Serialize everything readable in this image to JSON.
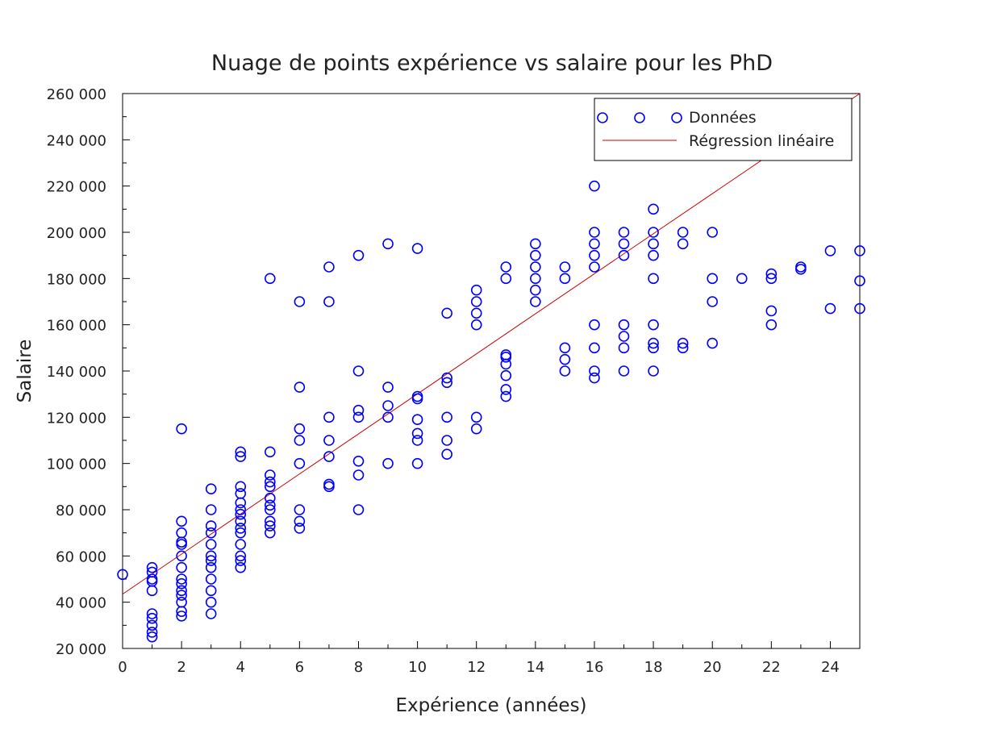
{
  "chart_data": {
    "type": "scatter",
    "title": "Nuage de points expérience vs salaire pour les PhD",
    "xlabel": "Expérience (années)",
    "ylabel": "Salaire",
    "xlim": [
      0,
      25
    ],
    "ylim": [
      20000,
      260000
    ],
    "xticks": [
      0,
      2,
      4,
      6,
      8,
      10,
      12,
      14,
      16,
      18,
      20,
      22,
      24
    ],
    "xtick_labels": [
      "0",
      "2",
      "4",
      "6",
      "8",
      "10",
      "12",
      "14",
      "16",
      "18",
      "20",
      "22",
      "24"
    ],
    "yticks": [
      20000,
      40000,
      60000,
      80000,
      100000,
      120000,
      140000,
      160000,
      180000,
      200000,
      220000,
      240000,
      260000
    ],
    "ytick_labels": [
      "20 000",
      "40 000",
      "60 000",
      "80 000",
      "100 000",
      "120 000",
      "140 000",
      "160 000",
      "180 000",
      "200 000",
      "220 000",
      "240 000",
      "260 000"
    ],
    "grid": false,
    "legend_position": "top-right",
    "colors": {
      "points": "#0000ff",
      "regression": "#cc0000"
    },
    "series": [
      {
        "name": "Données",
        "marker": "circle",
        "points": [
          [
            0,
            52000
          ],
          [
            1,
            25000
          ],
          [
            1,
            27000
          ],
          [
            1,
            30000
          ],
          [
            1,
            33000
          ],
          [
            1,
            35000
          ],
          [
            1,
            45000
          ],
          [
            1,
            49000
          ],
          [
            1,
            50000
          ],
          [
            1,
            53000
          ],
          [
            1,
            55000
          ],
          [
            2,
            34000
          ],
          [
            2,
            36000
          ],
          [
            2,
            40000
          ],
          [
            2,
            43000
          ],
          [
            2,
            45000
          ],
          [
            2,
            48000
          ],
          [
            2,
            50000
          ],
          [
            2,
            55000
          ],
          [
            2,
            60000
          ],
          [
            2,
            65000
          ],
          [
            2,
            66000
          ],
          [
            2,
            70000
          ],
          [
            2,
            75000
          ],
          [
            2,
            115000
          ],
          [
            3,
            35000
          ],
          [
            3,
            40000
          ],
          [
            3,
            45000
          ],
          [
            3,
            50000
          ],
          [
            3,
            55000
          ],
          [
            3,
            58000
          ],
          [
            3,
            60000
          ],
          [
            3,
            65000
          ],
          [
            3,
            70000
          ],
          [
            3,
            73000
          ],
          [
            3,
            80000
          ],
          [
            3,
            89000
          ],
          [
            4,
            55000
          ],
          [
            4,
            58000
          ],
          [
            4,
            60000
          ],
          [
            4,
            65000
          ],
          [
            4,
            70000
          ],
          [
            4,
            72000
          ],
          [
            4,
            75000
          ],
          [
            4,
            78000
          ],
          [
            4,
            80000
          ],
          [
            4,
            83000
          ],
          [
            4,
            87000
          ],
          [
            4,
            90000
          ],
          [
            4,
            103000
          ],
          [
            4,
            105000
          ],
          [
            5,
            70000
          ],
          [
            5,
            73000
          ],
          [
            5,
            75000
          ],
          [
            5,
            80000
          ],
          [
            5,
            82000
          ],
          [
            5,
            85000
          ],
          [
            5,
            90000
          ],
          [
            5,
            92000
          ],
          [
            5,
            95000
          ],
          [
            5,
            105000
          ],
          [
            5,
            180000
          ],
          [
            6,
            72000
          ],
          [
            6,
            75000
          ],
          [
            6,
            80000
          ],
          [
            6,
            100000
          ],
          [
            6,
            110000
          ],
          [
            6,
            115000
          ],
          [
            6,
            133000
          ],
          [
            6,
            170000
          ],
          [
            7,
            90000
          ],
          [
            7,
            91000
          ],
          [
            7,
            103000
          ],
          [
            7,
            110000
          ],
          [
            7,
            120000
          ],
          [
            7,
            170000
          ],
          [
            7,
            185000
          ],
          [
            8,
            80000
          ],
          [
            8,
            95000
          ],
          [
            8,
            101000
          ],
          [
            8,
            120000
          ],
          [
            8,
            123000
          ],
          [
            8,
            140000
          ],
          [
            8,
            190000
          ],
          [
            9,
            100000
          ],
          [
            9,
            120000
          ],
          [
            9,
            125000
          ],
          [
            9,
            133000
          ],
          [
            9,
            195000
          ],
          [
            10,
            100000
          ],
          [
            10,
            110000
          ],
          [
            10,
            113000
          ],
          [
            10,
            119000
          ],
          [
            10,
            128000
          ],
          [
            10,
            129000
          ],
          [
            10,
            193000
          ],
          [
            11,
            104000
          ],
          [
            11,
            110000
          ],
          [
            11,
            120000
          ],
          [
            11,
            135000
          ],
          [
            11,
            137000
          ],
          [
            11,
            165000
          ],
          [
            12,
            115000
          ],
          [
            12,
            120000
          ],
          [
            12,
            160000
          ],
          [
            12,
            165000
          ],
          [
            12,
            170000
          ],
          [
            12,
            175000
          ],
          [
            13,
            129000
          ],
          [
            13,
            132000
          ],
          [
            13,
            138000
          ],
          [
            13,
            143000
          ],
          [
            13,
            146000
          ],
          [
            13,
            147000
          ],
          [
            13,
            180000
          ],
          [
            13,
            185000
          ],
          [
            14,
            170000
          ],
          [
            14,
            175000
          ],
          [
            14,
            180000
          ],
          [
            14,
            185000
          ],
          [
            14,
            190000
          ],
          [
            14,
            195000
          ],
          [
            15,
            140000
          ],
          [
            15,
            145000
          ],
          [
            15,
            150000
          ],
          [
            15,
            180000
          ],
          [
            15,
            185000
          ],
          [
            16,
            137000
          ],
          [
            16,
            140000
          ],
          [
            16,
            150000
          ],
          [
            16,
            160000
          ],
          [
            16,
            185000
          ],
          [
            16,
            190000
          ],
          [
            16,
            195000
          ],
          [
            16,
            200000
          ],
          [
            16,
            220000
          ],
          [
            17,
            140000
          ],
          [
            17,
            150000
          ],
          [
            17,
            155000
          ],
          [
            17,
            160000
          ],
          [
            17,
            190000
          ],
          [
            17,
            195000
          ],
          [
            17,
            200000
          ],
          [
            18,
            140000
          ],
          [
            18,
            150000
          ],
          [
            18,
            152000
          ],
          [
            18,
            160000
          ],
          [
            18,
            180000
          ],
          [
            18,
            190000
          ],
          [
            18,
            195000
          ],
          [
            18,
            200000
          ],
          [
            18,
            210000
          ],
          [
            19,
            150000
          ],
          [
            19,
            152000
          ],
          [
            19,
            195000
          ],
          [
            19,
            200000
          ],
          [
            20,
            152000
          ],
          [
            20,
            170000
          ],
          [
            20,
            180000
          ],
          [
            20,
            200000
          ],
          [
            21,
            180000
          ],
          [
            22,
            160000
          ],
          [
            22,
            166000
          ],
          [
            22,
            180000
          ],
          [
            22,
            182000
          ],
          [
            23,
            184000
          ],
          [
            23,
            185000
          ],
          [
            24,
            167000
          ],
          [
            24,
            192000
          ],
          [
            25,
            167000
          ],
          [
            25,
            179000
          ],
          [
            25,
            192000
          ]
        ]
      },
      {
        "name": "Régression linéaire",
        "type": "line",
        "x": [
          0,
          25
        ],
        "y": [
          43500,
          260000
        ]
      }
    ]
  }
}
